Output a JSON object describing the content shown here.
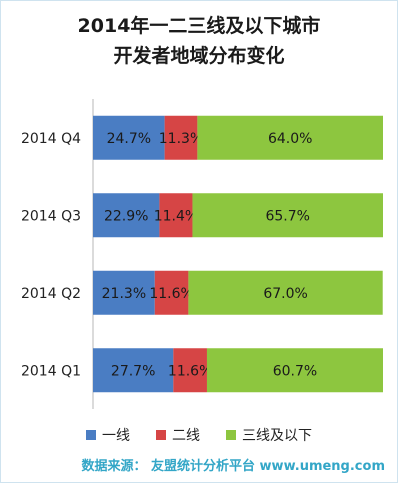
{
  "chart_data": {
    "type": "bar",
    "orientation": "horizontal",
    "stacked": true,
    "title_lines": [
      "2014年一二三线及以下城市",
      "开发者地域分布变化"
    ],
    "categories": [
      "2014 Q4",
      "2014 Q3",
      "2014 Q2",
      "2014 Q1"
    ],
    "series": [
      {
        "name": "一线",
        "color": "#4a7dc3",
        "values": [
          24.7,
          22.9,
          21.3,
          27.7
        ],
        "labels": [
          "24.7%",
          "22.9%",
          "21.3%",
          "27.7%"
        ]
      },
      {
        "name": "二线",
        "color": "#d64545",
        "values": [
          11.3,
          11.4,
          11.6,
          11.6
        ],
        "labels": [
          "11.3%",
          "11.4%",
          "11.6%",
          "11.6%"
        ]
      },
      {
        "name": "三线及以下",
        "color": "#8dc63f",
        "values": [
          64.0,
          65.7,
          67.0,
          60.7
        ],
        "labels": [
          "64.0%",
          "65.7%",
          "67.0%",
          "60.7%"
        ]
      }
    ],
    "xlim": [
      0,
      100
    ],
    "legend_position": "bottom"
  },
  "footer": "数据来源： 友盟统计分析平台 www.umeng.com"
}
